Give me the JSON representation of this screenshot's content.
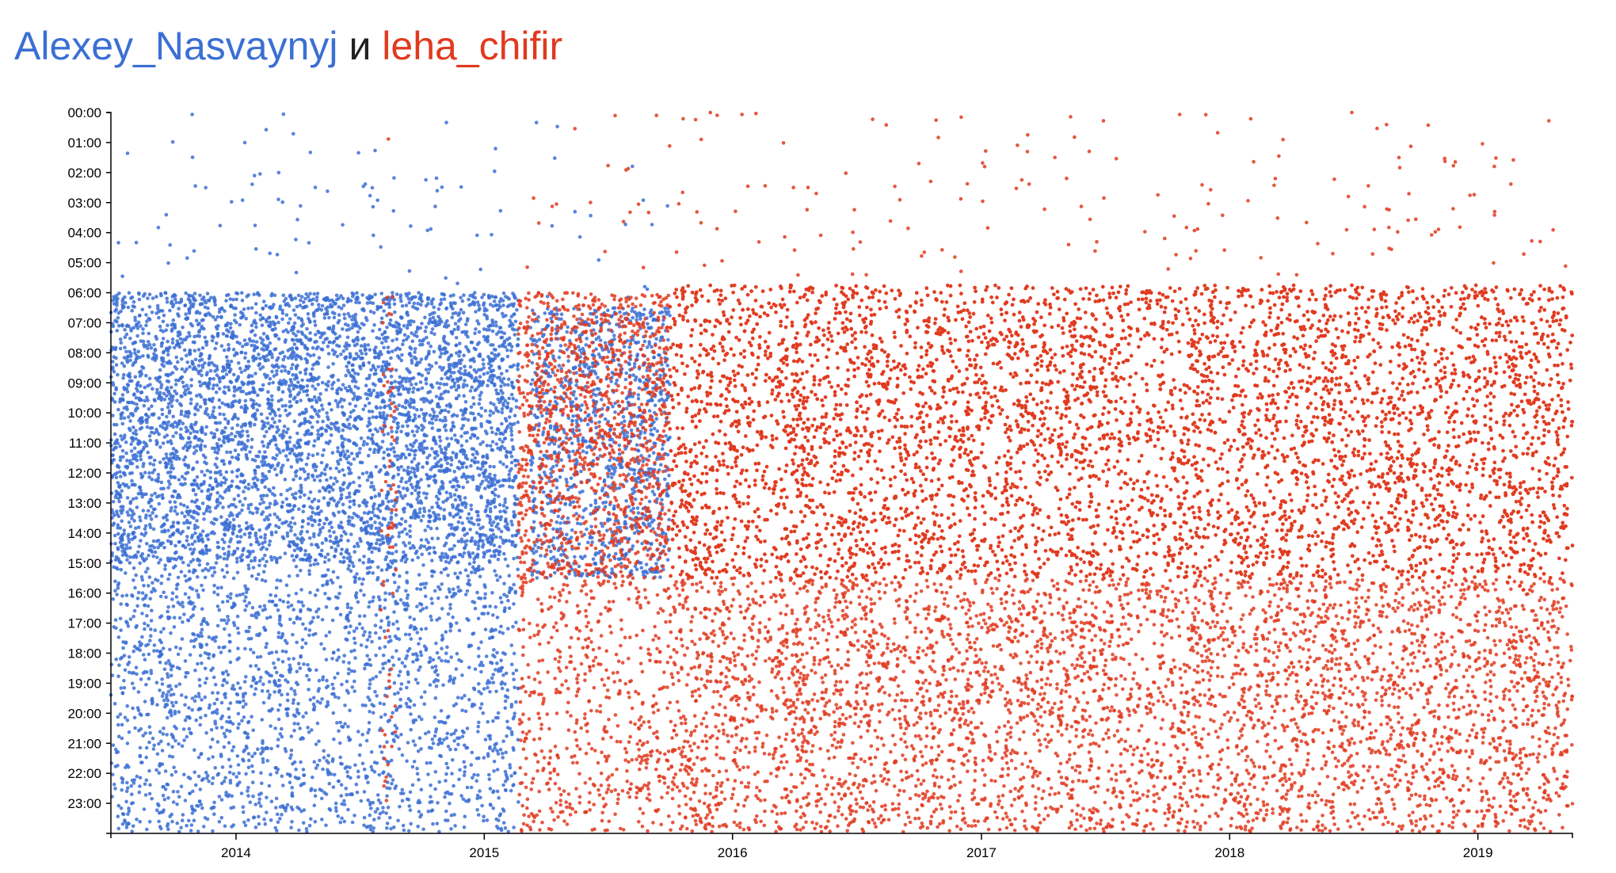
{
  "title": {
    "user1": "Alexey_Nasvaynyj",
    "conj": "и",
    "user2": "leha_chifir"
  },
  "colors": {
    "user1": "#3b6fd4",
    "user2": "#e03a1f",
    "conj": "#222222"
  },
  "chart_data": {
    "type": "scatter",
    "x_axis": {
      "kind": "time",
      "domain": [
        "2013-07-01",
        "2019-05-20"
      ],
      "ticks": [
        "2014",
        "2015",
        "2016",
        "2017",
        "2018",
        "2019"
      ]
    },
    "y_axis": {
      "kind": "time-of-day",
      "domain": [
        "00:00",
        "24:00"
      ],
      "reversed": true,
      "ticks": [
        "00:00",
        "01:00",
        "02:00",
        "03:00",
        "04:00",
        "05:00",
        "06:00",
        "07:00",
        "08:00",
        "09:00",
        "10:00",
        "11:00",
        "12:00",
        "13:00",
        "14:00",
        "15:00",
        "16:00",
        "17:00",
        "18:00",
        "19:00",
        "20:00",
        "21:00",
        "22:00",
        "23:00"
      ]
    },
    "grid": false,
    "series": [
      {
        "name": "Alexey_Nasvaynyj",
        "color": "#3b6fd4",
        "activity_periods": [
          {
            "start": "2013-07-01",
            "end": "2015-02-20",
            "core_hours": [
              "06:00",
              "15:00"
            ],
            "evening_hours": [
              "15:00",
              "24:00"
            ],
            "density": "high"
          },
          {
            "start": "2015-03-10",
            "end": "2015-10-01",
            "core_hours": [
              "06:30",
              "15:30"
            ],
            "evening_hours": null,
            "density": "medium"
          }
        ]
      },
      {
        "name": "leha_chifir",
        "color": "#e03a1f",
        "activity_periods": [
          {
            "start": "2014-08-01",
            "end": "2014-08-25",
            "core_hours": [
              "06:00",
              "23:00"
            ],
            "evening_hours": null,
            "density": "low"
          },
          {
            "start": "2015-02-20",
            "end": "2015-10-01",
            "core_hours": [
              "06:00",
              "15:30"
            ],
            "evening_hours": [
              "15:30",
              "24:00"
            ],
            "density": "medium"
          },
          {
            "start": "2015-10-01",
            "end": "2019-05-20",
            "core_hours": [
              "05:45",
              "15:30"
            ],
            "evening_hours": [
              "15:30",
              "24:00"
            ],
            "density": "high"
          }
        ]
      }
    ]
  }
}
